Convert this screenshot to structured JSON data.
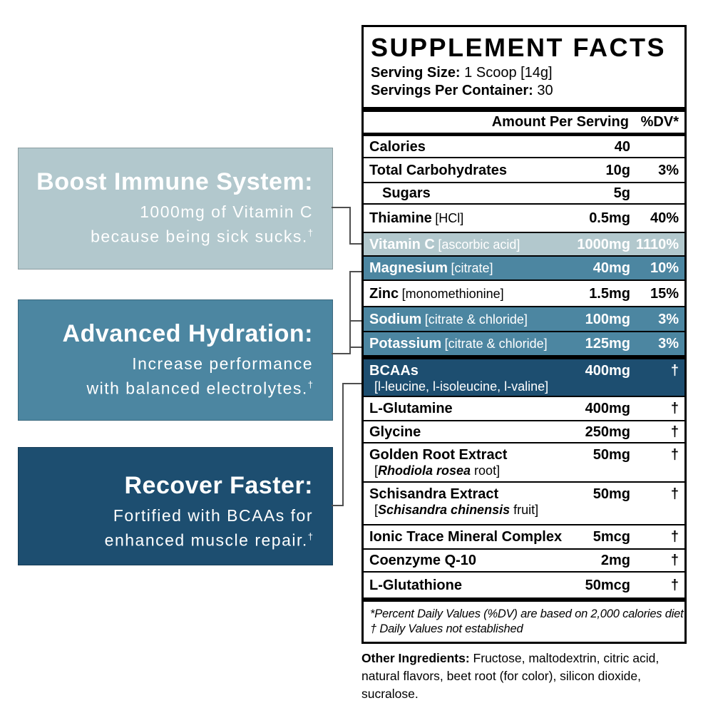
{
  "palette": {
    "light_blue": "#b2c8cd",
    "medium_blue": "#4c86a1",
    "dark_navy": "#1d4e70",
    "connector_gray": "#4f4f4f"
  },
  "callouts": [
    {
      "title": "Boost Immune System:",
      "lines": [
        "1000mg of Vitamin C",
        "because being sick sucks."
      ],
      "dagger": "†"
    },
    {
      "title": "Advanced Hydration:",
      "lines": [
        "Increase performance",
        "with balanced electrolytes."
      ],
      "dagger": "†"
    },
    {
      "title": "Recover Faster:",
      "lines": [
        "Fortified with BCAAs for",
        "enhanced muscle repair."
      ],
      "dagger": "†"
    }
  ],
  "panel": {
    "title": "SUPPLEMENT FACTS",
    "serving_size_label": "Serving Size:",
    "serving_size_value": "1 Scoop [14g]",
    "servings_label": "Servings Per Container:",
    "servings_value": "30",
    "amount_header": "Amount Per Serving",
    "dv_header": "%DV*",
    "rows": [
      {
        "name": "Calories",
        "detail": "",
        "amount": "40",
        "dv": "",
        "style": "white"
      },
      {
        "name": "Total Carbohydrates",
        "detail": "",
        "amount": "10g",
        "dv": "3%",
        "style": "white"
      },
      {
        "name": "Sugars",
        "detail": "",
        "amount": "5g",
        "dv": "",
        "style": "white",
        "indent": true
      },
      {
        "name": "Thiamine",
        "detail": "[HCl]",
        "amount": "0.5mg",
        "dv": "40%",
        "style": "white"
      },
      {
        "name": "Vitamin C",
        "detail": "[ascorbic acid]",
        "amount": "1000mg",
        "dv": "1110%",
        "style": "light"
      },
      {
        "name": "Magnesium",
        "detail": "[citrate]",
        "amount": "40mg",
        "dv": "10%",
        "style": "medium"
      },
      {
        "name": "Zinc",
        "detail": "[monomethionine]",
        "amount": "1.5mg",
        "dv": "15%",
        "style": "white"
      },
      {
        "name": "Sodium",
        "detail": "[citrate & chloride]",
        "amount": "100mg",
        "dv": "3%",
        "style": "medium"
      },
      {
        "name": "Potassium",
        "detail": "[citrate & chloride]",
        "amount": "125mg",
        "dv": "3%",
        "style": "medium",
        "thick_after": true
      },
      {
        "name": "BCAAs",
        "detail": "",
        "sub": {
          "pre": "[l-leucine, l-isoleucine, l-valine]",
          "italic": "",
          "post": ""
        },
        "amount": "400mg",
        "dv": "†",
        "style": "dark"
      },
      {
        "name": "L-Glutamine",
        "detail": "",
        "amount": "400mg",
        "dv": "†",
        "style": "white"
      },
      {
        "name": "Glycine",
        "detail": "",
        "amount": "250mg",
        "dv": "†",
        "style": "white"
      },
      {
        "name": "Golden Root Extract",
        "detail": "",
        "sub": {
          "pre": "[",
          "italic": "Rhodiola rosea",
          "post": " root]"
        },
        "amount": "50mg",
        "dv": "†",
        "style": "white"
      },
      {
        "name": "Schisandra Extract",
        "detail": "",
        "sub": {
          "pre": "[",
          "italic": "Schisandra chinensis",
          "post": " fruit]"
        },
        "amount": "50mg",
        "dv": "†",
        "style": "white"
      },
      {
        "name": "Ionic Trace Mineral Complex",
        "detail": "",
        "amount": "5mcg",
        "dv": "†",
        "style": "white"
      },
      {
        "name": "Coenzyme Q-10",
        "detail": "",
        "amount": "2mg",
        "dv": "†",
        "style": "white"
      },
      {
        "name": "L-Glutathione",
        "detail": "",
        "amount": "50mcg",
        "dv": "†",
        "style": "white",
        "thick_after": true
      }
    ],
    "footnote_line1": "*Percent Daily Values (%DV) are based on 2,000 calories diet",
    "footnote_line2": "† Daily Values not established"
  },
  "other_ingredients": {
    "label": "Other Ingredients:",
    "text": " Fructose, maltodextrin, citric acid, natural flavors, beet root (for color), silicon dioxide, sucralose."
  }
}
